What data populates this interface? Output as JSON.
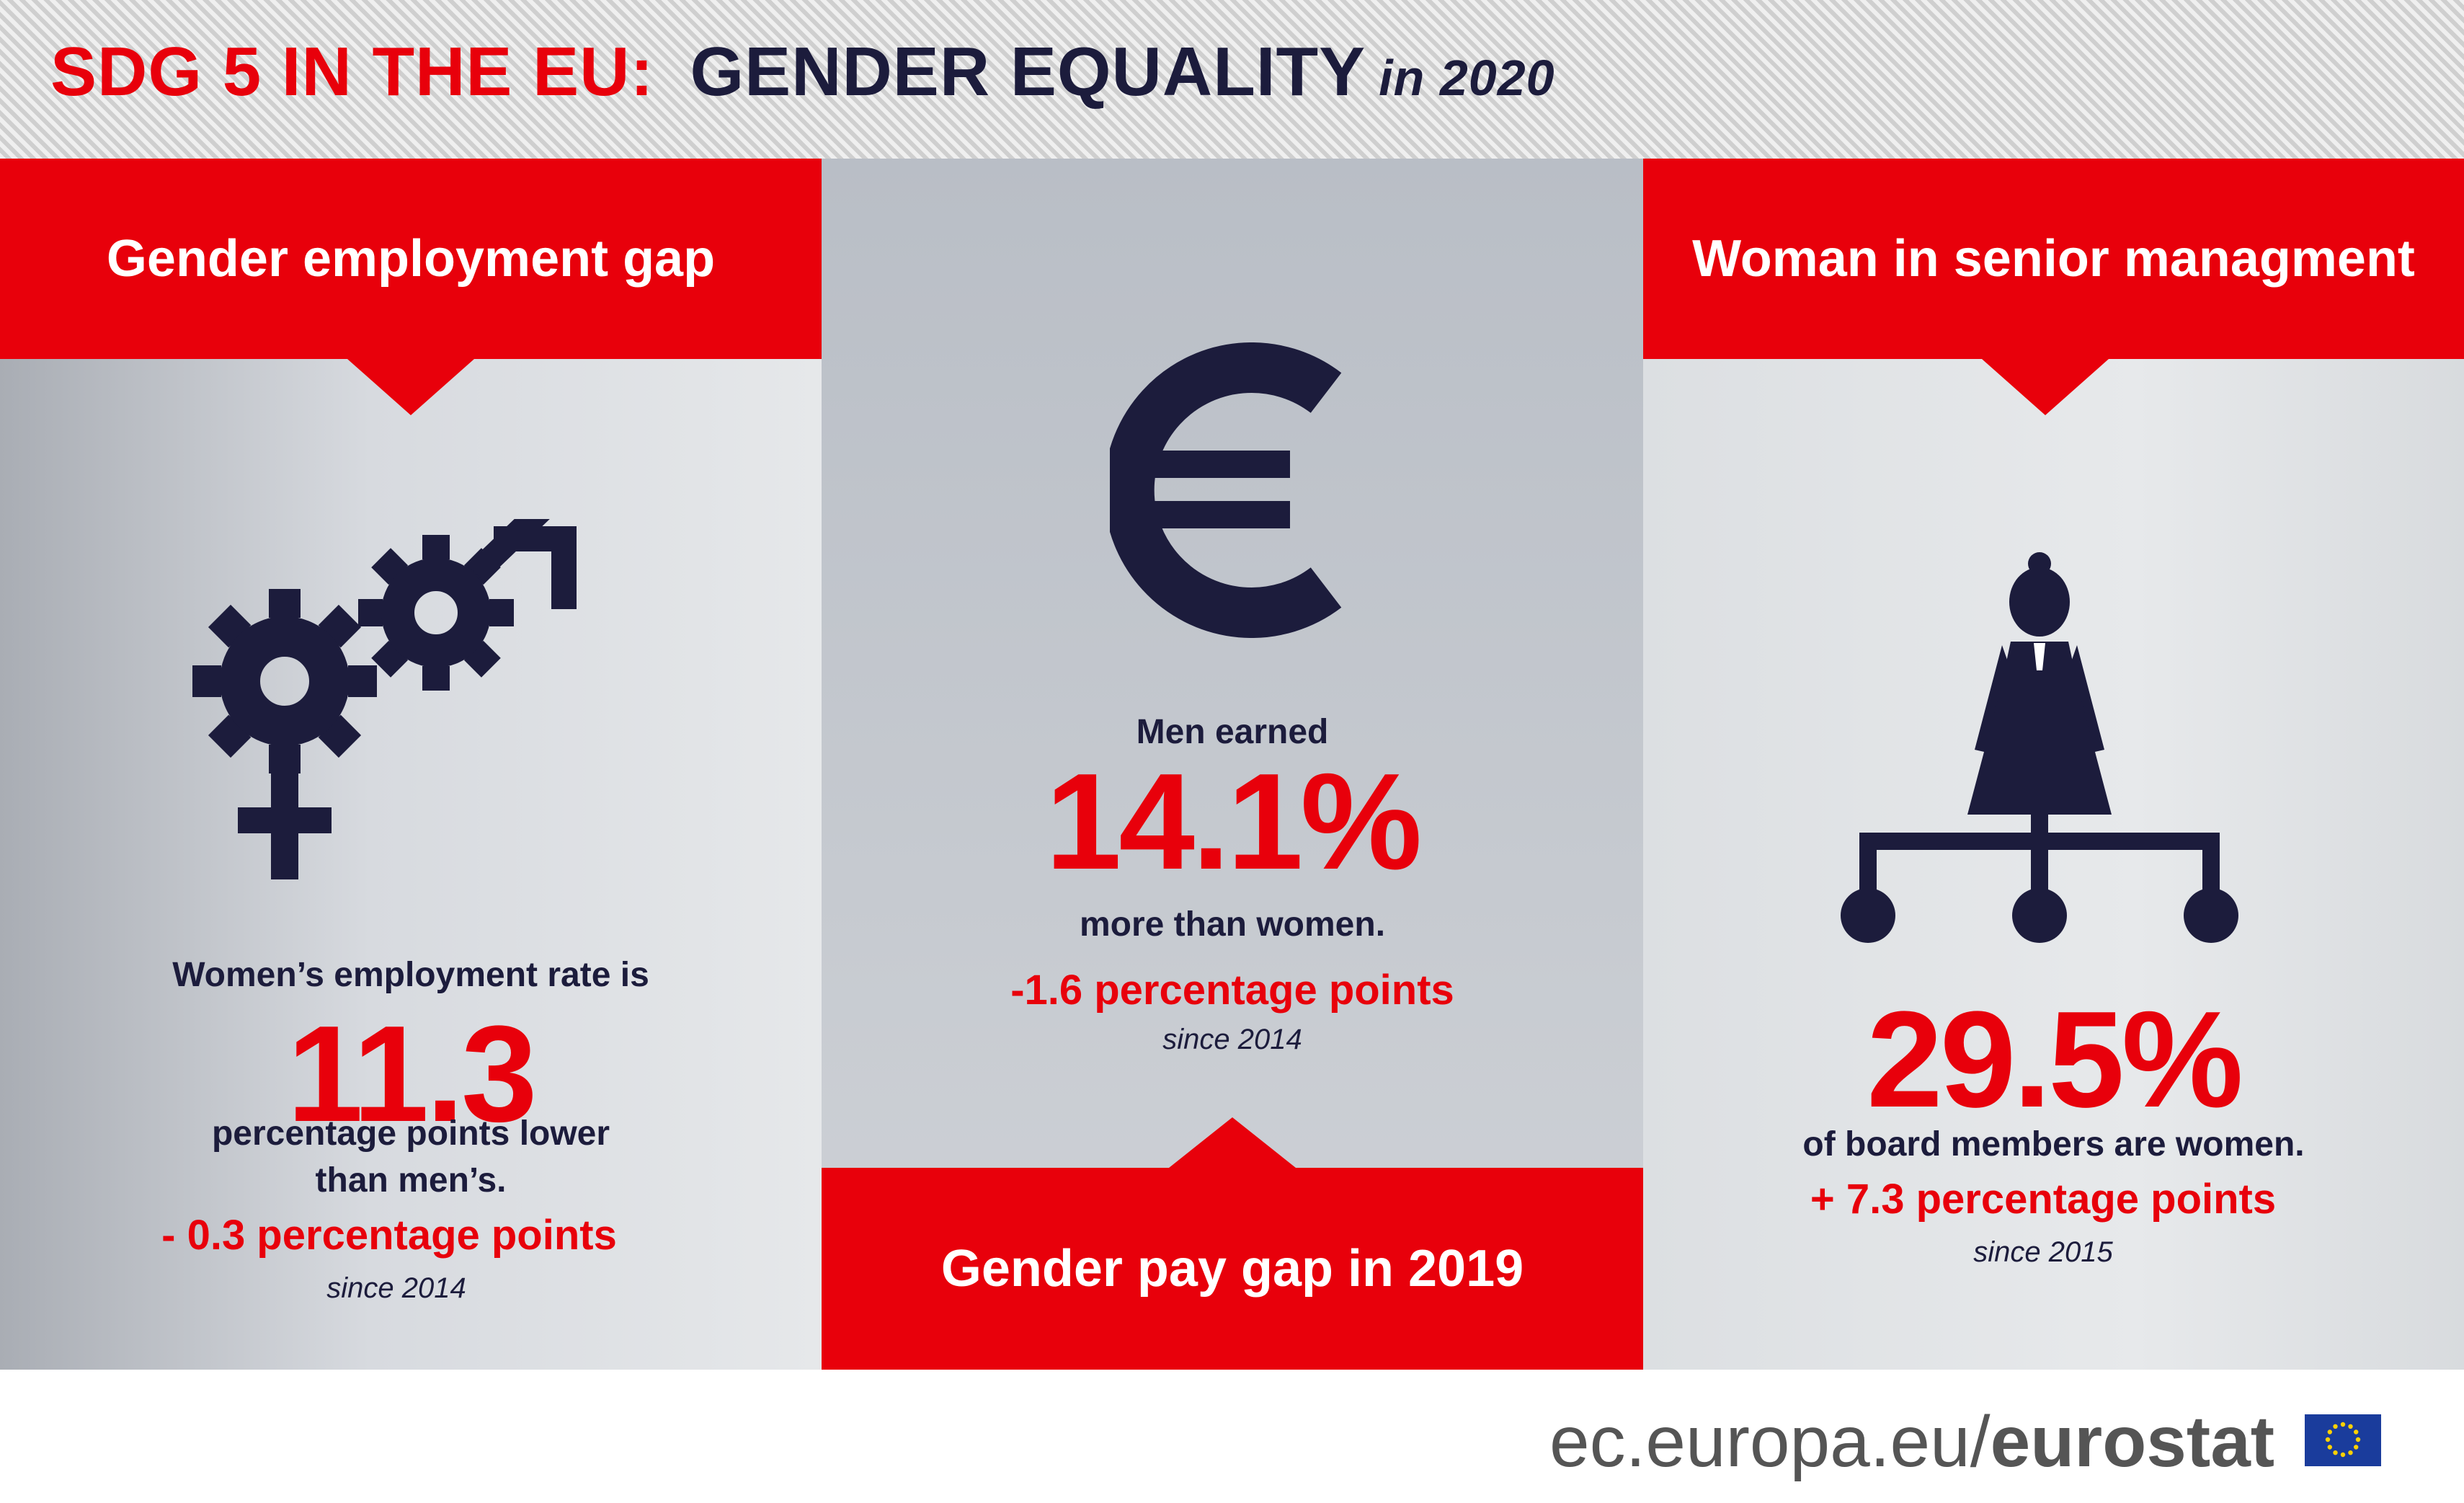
{
  "header": {
    "title_part1": "SDG 5 IN THE EU:",
    "title_part2": "GENDER EQUALITY",
    "title_year": "in 2020"
  },
  "colors": {
    "accent_red": "#e8000b",
    "navy": "#1c1c3c",
    "panel_grey": "#c6cad0"
  },
  "employment": {
    "heading": "Gender employment gap",
    "icon": "gender-gears-icon",
    "line1": "Women’s employment rate is",
    "value": "11.3",
    "line2": "percentage points lower",
    "line3": "than men’s.",
    "change": "- 0.3 percentage points",
    "since": "since 2014"
  },
  "paygap": {
    "heading": "Gender pay gap in 2019",
    "icon": "euro-icon",
    "line1": "Men earned",
    "value": "14.1%",
    "line2": "more than women.",
    "change": "-1.6 percentage points",
    "since": "since 2014"
  },
  "management": {
    "heading": "Woman in senior managment",
    "icon": "businesswoman-hierarchy-icon",
    "value": "29.5%",
    "line1": "of board members are women.",
    "change": "+ 7.3 percentage points",
    "since": "since 2015"
  },
  "footer": {
    "url_prefix": "ec.europa.eu/",
    "url_brand": "eurostat",
    "flag_icon": "eu-flag-icon"
  }
}
